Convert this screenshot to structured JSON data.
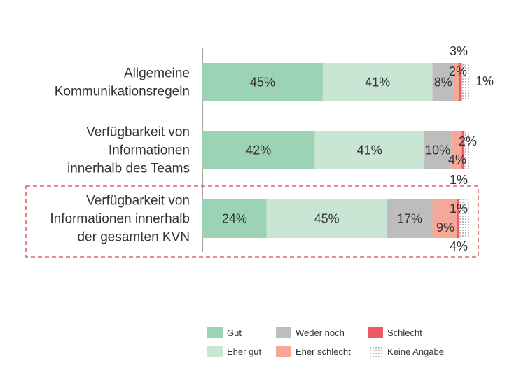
{
  "chart_data": {
    "type": "bar",
    "orientation": "horizontal",
    "stacked": true,
    "normalized_to_percent": true,
    "categories": [
      [
        "Allgemeine",
        "Kommunikationsregeln"
      ],
      [
        "Verfügbarkeit von",
        "Informationen",
        "innerhalb des Teams"
      ],
      [
        "Verfügbarkeit von",
        "Informationen innerhalb",
        "der gesamten KVN"
      ]
    ],
    "highlighted_category": 2,
    "series": [
      {
        "name": "Gut",
        "color": "#9BD3B4",
        "pattern": "solid",
        "values": [
          45,
          42,
          24
        ],
        "labels": [
          "45%",
          "42%",
          "24%"
        ]
      },
      {
        "name": "Eher gut",
        "color": "#C8E6D3",
        "pattern": "solid",
        "values": [
          41,
          41,
          45
        ],
        "labels": [
          "41%",
          "41%",
          "45%"
        ]
      },
      {
        "name": "Weder noch",
        "color": "#BDBDBD",
        "pattern": "solid",
        "values": [
          8,
          10,
          17
        ],
        "labels": [
          "8%",
          "10%",
          "17%"
        ]
      },
      {
        "name": "Eher schlecht",
        "color": "#F5A897",
        "pattern": "solid",
        "values": [
          2,
          4,
          9
        ],
        "labels": [
          "2%",
          "4%",
          "9%"
        ]
      },
      {
        "name": "Schlecht",
        "color": "#EB5B64",
        "pattern": "solid",
        "values": [
          1,
          1,
          1
        ],
        "labels": [
          "1%",
          "1%",
          "1%"
        ]
      },
      {
        "name": "Keine Angabe",
        "color": "#ffffff",
        "pattern": "dotted",
        "values": [
          3,
          2,
          4
        ],
        "labels": [
          "3%",
          "2%",
          "4%"
        ]
      }
    ],
    "legend": {
      "position": "bottom-right",
      "order": [
        "Gut",
        "Weder noch",
        "Schlecht",
        "Eher gut",
        "Eher schlecht",
        "Keine Angabe"
      ]
    }
  }
}
